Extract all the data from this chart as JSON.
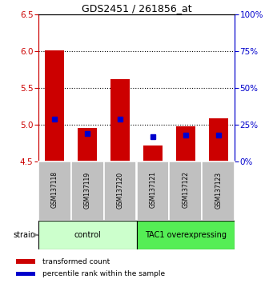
{
  "title": "GDS2451 / 261856_at",
  "samples": [
    "GSM137118",
    "GSM137119",
    "GSM137120",
    "GSM137121",
    "GSM137122",
    "GSM137123"
  ],
  "red_top": [
    6.003,
    4.953,
    5.62,
    4.72,
    4.981,
    5.083
  ],
  "blue_pos": [
    5.073,
    4.878,
    5.073,
    4.832,
    4.855,
    4.855
  ],
  "bar_bottom": 4.5,
  "ylim": [
    4.5,
    6.5
  ],
  "yticks_left": [
    4.5,
    5.0,
    5.5,
    6.0,
    6.5
  ],
  "yticks_right": [
    0,
    25,
    50,
    75,
    100
  ],
  "left_color": "#cc0000",
  "right_color": "#0000cc",
  "bar_color": "#cc0000",
  "blue_color": "#0000cc",
  "control_label": "control",
  "tac1_label": "TAC1 overexpressing",
  "control_bg": "#ccffcc",
  "tac1_bg": "#55ee55",
  "xticklabel_bg": "#c0c0c0",
  "legend_red": "transformed count",
  "legend_blue": "percentile rank within the sample",
  "strain_label": "strain",
  "blue_marker_size": 4.0,
  "bar_width": 0.6,
  "grid_vals": [
    5.0,
    5.5,
    6.0
  ]
}
